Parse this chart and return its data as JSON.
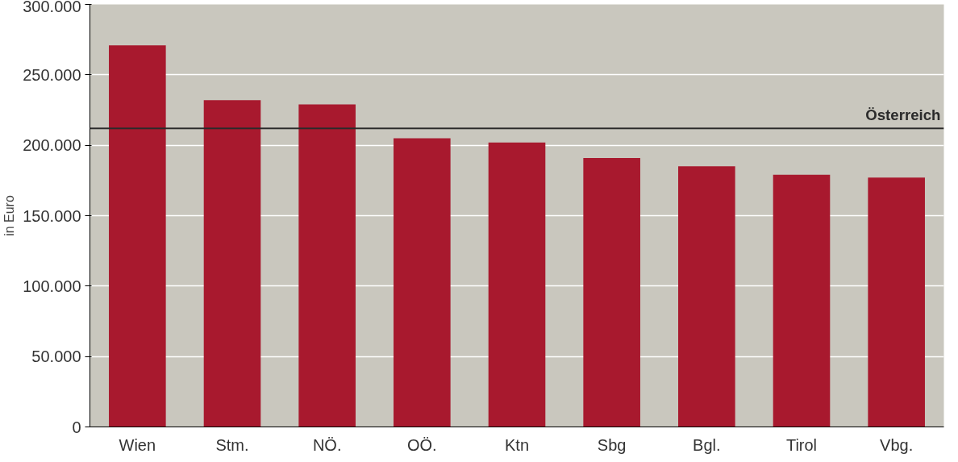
{
  "chart_data": {
    "type": "bar",
    "ylabel": "in Euro",
    "categories": [
      "Wien",
      "Stm.",
      "NÖ.",
      "OÖ.",
      "Ktn",
      "Sbg",
      "Bgl.",
      "Tirol",
      "Vbg."
    ],
    "values": [
      271000,
      232000,
      229000,
      205000,
      202000,
      191000,
      185000,
      179000,
      177000
    ],
    "color": "#a8192e",
    "ylim": [
      0,
      300000
    ],
    "yticks": [
      {
        "value": 0,
        "label": "0"
      },
      {
        "value": 50000,
        "label": "50.000"
      },
      {
        "value": 100000,
        "label": "100.000"
      },
      {
        "value": 150000,
        "label": "150.000"
      },
      {
        "value": 200000,
        "label": "200.000"
      },
      {
        "value": 250000,
        "label": "250.000"
      },
      {
        "value": 300000,
        "label": "300.000"
      }
    ],
    "grid": "y",
    "ref_lines": [
      {
        "axis": "y",
        "value": 212000,
        "label": "Österreich",
        "color": "#2b2b2b"
      }
    ]
  }
}
